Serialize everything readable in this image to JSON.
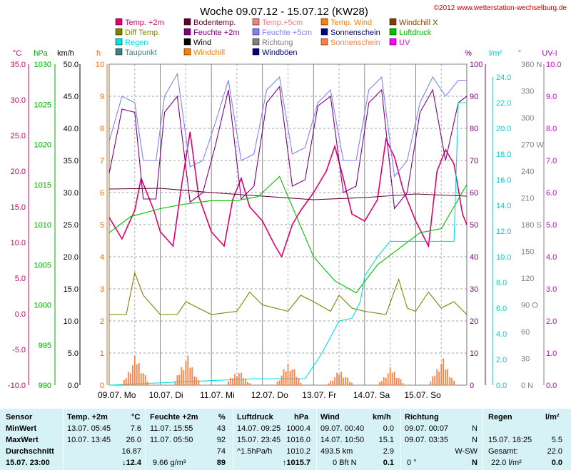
{
  "header": {
    "title": "Woche 09.07.12 - 15.07.12 (KW28)",
    "copyright": "©2012 www.wetterstation-wechselburg.de"
  },
  "legend": [
    {
      "label": "Temp. +2m",
      "color": "#e0006c"
    },
    {
      "label": "Bodentemp.",
      "color": "#600030"
    },
    {
      "label": "Temp.+5cm",
      "color": "#f08080"
    },
    {
      "label": "Temp. Wind",
      "color": "#ff7f00"
    },
    {
      "label": "Windchill X",
      "color": "#804000"
    },
    {
      "label": "Diff Temp.",
      "color": "#808000"
    },
    {
      "label": "Feuchte +2m",
      "color": "#800080"
    },
    {
      "label": "Feuchte +5cm",
      "color": "#8080ff"
    },
    {
      "label": "Sonnenschein",
      "color": "#000080"
    },
    {
      "label": "Luftdruck",
      "color": "#00c000"
    },
    {
      "label": "Regen",
      "color": "#00e0e0"
    },
    {
      "label": "Wind",
      "color": "#000000"
    },
    {
      "label": "Richtung",
      "color": "#808080"
    },
    {
      "label": "Sonnenschein",
      "color": "#ff8040"
    },
    {
      "label": "UV",
      "color": "#ff00ff"
    },
    {
      "label": "Taupunkt",
      "color": "#408080"
    },
    {
      "label": "Windchill",
      "color": "#ff8000"
    },
    {
      "label": "Windböen",
      "color": "#000080"
    }
  ],
  "axes": {
    "temp": {
      "unit": "°C",
      "ticks": [
        "35.0",
        "30.0",
        "25.0",
        "20.0",
        "15.0",
        "10.0",
        "5.0",
        "0.0",
        "-5.0",
        "-10.0"
      ],
      "color": "#cc0066"
    },
    "pressure": {
      "unit": "hPa",
      "ticks": [
        "1030",
        "1025",
        "1020",
        "1015",
        "1010",
        "1005",
        "1000",
        "995",
        "990"
      ],
      "color": "#00aa00"
    },
    "wind": {
      "unit": "km/h",
      "ticks": [
        "50.0",
        "45.0",
        "40.0",
        "35.0",
        "30.0",
        "25.0",
        "20.0",
        "15.0",
        "10.0",
        "5.0",
        "0.0"
      ],
      "color": "#000000"
    },
    "hours": {
      "unit": "h",
      "ticks": [
        "10",
        "9",
        "8",
        "7",
        "6",
        "5",
        "4",
        "3",
        "2",
        "1",
        "0"
      ],
      "color": "#ff6600"
    },
    "humidity": {
      "unit": "%",
      "ticks": [
        "100",
        "90",
        "80",
        "70",
        "60",
        "50",
        "40",
        "30",
        "20",
        "10",
        "0"
      ],
      "color": "#800080"
    },
    "rain": {
      "unit": "l/m²",
      "ticks": [
        "24.0",
        "22.0",
        "20.0",
        "18.0",
        "16.0",
        "14.0",
        "12.0",
        "10.0",
        "8.0",
        "6.0",
        "4.0",
        "2.0",
        "0.0"
      ],
      "color": "#00cccc"
    },
    "direction": {
      "unit": "°",
      "ticks": [
        "360 N",
        "330",
        "300",
        "270 W",
        "240",
        "210",
        "180 S",
        "150",
        "120",
        "90 O",
        "60",
        "30",
        "0 N"
      ],
      "color": "#808080"
    },
    "uv": {
      "unit": "UV-I",
      "ticks": [
        "10.0",
        "9.0",
        "8.0",
        "7.0",
        "6.0",
        "5.0",
        "4.0",
        "3.0",
        "2.0",
        "1.0",
        "0.0"
      ],
      "color": "#cc00cc"
    }
  },
  "days": [
    "09.07. Mo",
    "10.07. Di",
    "11.07. Mi",
    "12.07. Do",
    "13.07. Fr",
    "14.07. Sa",
    "15.07. So"
  ],
  "chart_data": {
    "type": "line",
    "title": "Woche 09.07.12 - 15.07.12 (KW28)",
    "x_unit": "hours since 09.07. 00:00",
    "xlim": [
      0,
      168
    ],
    "categories": [
      "09.07. Mo",
      "10.07. Di",
      "11.07. Mi",
      "12.07. Do",
      "13.07. Fr",
      "14.07. Sa",
      "15.07. So"
    ],
    "series": [
      {
        "name": "Temp. +2m",
        "unit": "°C",
        "x": [
          0,
          6,
          12,
          15,
          21,
          24,
          30,
          34,
          38,
          42,
          48,
          54,
          58,
          62,
          66,
          72,
          78,
          81,
          86,
          90,
          96,
          102,
          106,
          110,
          114,
          120,
          126,
          130,
          134,
          138,
          144,
          150,
          154,
          158,
          162,
          166,
          168
        ],
        "values": [
          13.5,
          10.5,
          14.5,
          19.0,
          14.5,
          11.5,
          9.5,
          18.0,
          25.5,
          16.5,
          11.5,
          9.5,
          16.0,
          19.0,
          15.0,
          13.0,
          9.5,
          8.0,
          12.5,
          14.5,
          17.0,
          20.0,
          23.5,
          19.0,
          14.0,
          13.0,
          16.0,
          24.5,
          22.0,
          17.5,
          13.0,
          9.5,
          20.0,
          23.0,
          21.0,
          14.0,
          12.5
        ]
      },
      {
        "name": "Bodentemp.",
        "unit": "°C",
        "x": [
          0,
          24,
          48,
          72,
          96,
          120,
          144,
          168
        ],
        "values": [
          17.5,
          17.6,
          17.0,
          16.5,
          16.0,
          16.3,
          16.8,
          16.5
        ]
      },
      {
        "name": "Feuchte +2m",
        "unit": "%",
        "x": [
          0,
          6,
          12,
          16,
          22,
          26,
          32,
          38,
          44,
          50,
          56,
          62,
          68,
          74,
          80,
          86,
          92,
          98,
          104,
          110,
          116,
          122,
          128,
          134,
          140,
          146,
          152,
          158,
          164,
          168
        ],
        "values": [
          66,
          86,
          85,
          58,
          58,
          85,
          90,
          57,
          60,
          75,
          92,
          58,
          62,
          88,
          93,
          62,
          64,
          87,
          90,
          60,
          62,
          88,
          92,
          55,
          60,
          85,
          92,
          70,
          88,
          90
        ]
      },
      {
        "name": "Feuchte +5cm",
        "unit": "%",
        "x": [
          0,
          6,
          12,
          16,
          22,
          26,
          32,
          38,
          44,
          50,
          56,
          62,
          68,
          74,
          80,
          86,
          92,
          98,
          104,
          110,
          116,
          122,
          128,
          134,
          140,
          146,
          152,
          158,
          164,
          168
        ],
        "values": [
          76,
          90,
          88,
          70,
          70,
          90,
          97,
          68,
          70,
          82,
          95,
          70,
          72,
          92,
          96,
          72,
          74,
          88,
          92,
          70,
          70,
          92,
          96,
          65,
          70,
          88,
          96,
          90,
          95,
          95
        ]
      },
      {
        "name": "Luftdruck",
        "unit": "hPa",
        "x": [
          0,
          10,
          24,
          34,
          48,
          60,
          70,
          80,
          96,
          106,
          116,
          126,
          136,
          146,
          156,
          168
        ],
        "values": [
          1009.0,
          1011.0,
          1012.0,
          1012.5,
          1013.0,
          1013.0,
          1013.5,
          1016.0,
          1006.0,
          1003.0,
          1001.5,
          1005.0,
          1007.0,
          1009.0,
          1009.5,
          1015.0
        ]
      },
      {
        "name": "Regen",
        "unit": "l/m²",
        "x": [
          0,
          68,
          92,
          100,
          108,
          114,
          118,
          120,
          126,
          132,
          146,
          156,
          162,
          164,
          168
        ],
        "values": [
          0,
          0.5,
          0.5,
          2.5,
          5.0,
          5.2,
          6.5,
          8.5,
          10.0,
          11.2,
          11.2,
          11.2,
          11.2,
          22.0,
          22.0
        ]
      },
      {
        "name": "Diff Temp.",
        "unit": "h",
        "x": [
          0,
          8,
          12,
          16,
          20,
          24,
          32,
          36,
          42,
          48,
          60,
          66,
          72,
          84,
          90,
          96,
          104,
          108,
          114,
          120,
          130,
          136,
          140,
          144,
          150,
          156,
          162,
          168
        ],
        "values": [
          2.2,
          2.2,
          3.5,
          2.8,
          2.5,
          2.2,
          2.2,
          2.6,
          2.4,
          2.2,
          2.3,
          2.9,
          2.5,
          2.3,
          2.8,
          2.6,
          2.3,
          2.8,
          2.4,
          2.3,
          2.2,
          3.3,
          2.4,
          2.3,
          2.9,
          2.4,
          2.6,
          2.2
        ]
      }
    ],
    "bars": {
      "name": "Sonnenschein",
      "unit": "h",
      "day_peaks": [
        1.0,
        1.0,
        0.5,
        0.8,
        0.5,
        0.6,
        0.9
      ]
    },
    "summary": {
      "temp_min": "7.6",
      "temp_max": "26.0",
      "temp_avg": "16.87",
      "temp_current": "12.4",
      "humidity_min": "43",
      "humidity_max": "92",
      "humidity_avg": "74",
      "humidity_current": "89",
      "pressure_min": "1000.4",
      "pressure_max": "1016.0",
      "pressure_avg": "1010.2",
      "pressure_current": "1015.7",
      "wind_min": "0.0",
      "wind_max": "15.1",
      "wind_avg": "2.9",
      "rain_max": "5.5",
      "rain_total": "22.0"
    }
  },
  "table": {
    "headers": {
      "sensor": "Sensor",
      "temp": "Temp. +2m",
      "temp_unit": "°C",
      "hum": "Feuchte +2m",
      "hum_unit": "%",
      "press": "Luftdruck",
      "press_unit": "hPa",
      "wind": "Wind",
      "wind_unit": "km/h",
      "dir": "Richtung",
      "rain": "Regen",
      "rain_unit": "l/m²"
    },
    "rows": {
      "min": {
        "label": "MinWert",
        "temp_t": "13.07.  05:45",
        "temp_v": "7.6",
        "hum_t": "11.07.  15:55",
        "hum_v": "43",
        "press_t": "14.07.  09:25",
        "press_v": "1000.4",
        "wind_t": "09.07.  00:40",
        "wind_v": "0.0",
        "dir_t": "09.07.  00:07",
        "dir_v": "N",
        "rain_t": "",
        "rain_v": ""
      },
      "max": {
        "label": "MaxWert",
        "temp_t": "10.07.  13:45",
        "temp_v": "26.0",
        "hum_t": "11.07.  05:50",
        "hum_v": "92",
        "press_t": "15.07.  23:45",
        "press_v": "1016.0",
        "wind_t": "14.07.  10:50",
        "wind_v": "15.1",
        "dir_t": "09.07.  03:35",
        "dir_v": "N",
        "rain_t": "15.07.  18:25",
        "rain_v": "5.5"
      },
      "avg": {
        "label": "Durchschnitt",
        "temp_v": "16.87",
        "hum_v": "74",
        "press_t": "^1.5hPa/h",
        "press_v": "1010.2",
        "wind_t": "493.5 km",
        "wind_v": "2.9",
        "dir_v": "W-SW",
        "rain_t": "Gesamt:",
        "rain_v": "22.0"
      },
      "current": {
        "label": "15.07.  23:00",
        "temp_v": "↓12.4",
        "hum_t": "9.66 g/m³",
        "hum_v": "89",
        "press_v": "↑1015.7",
        "wind_t": "0 Bft N",
        "wind_v": "0.1",
        "dir_t": "0 °",
        "dir_v": "N",
        "rain_t": "22.0 l/m²",
        "rain_v": "0.0"
      }
    }
  }
}
